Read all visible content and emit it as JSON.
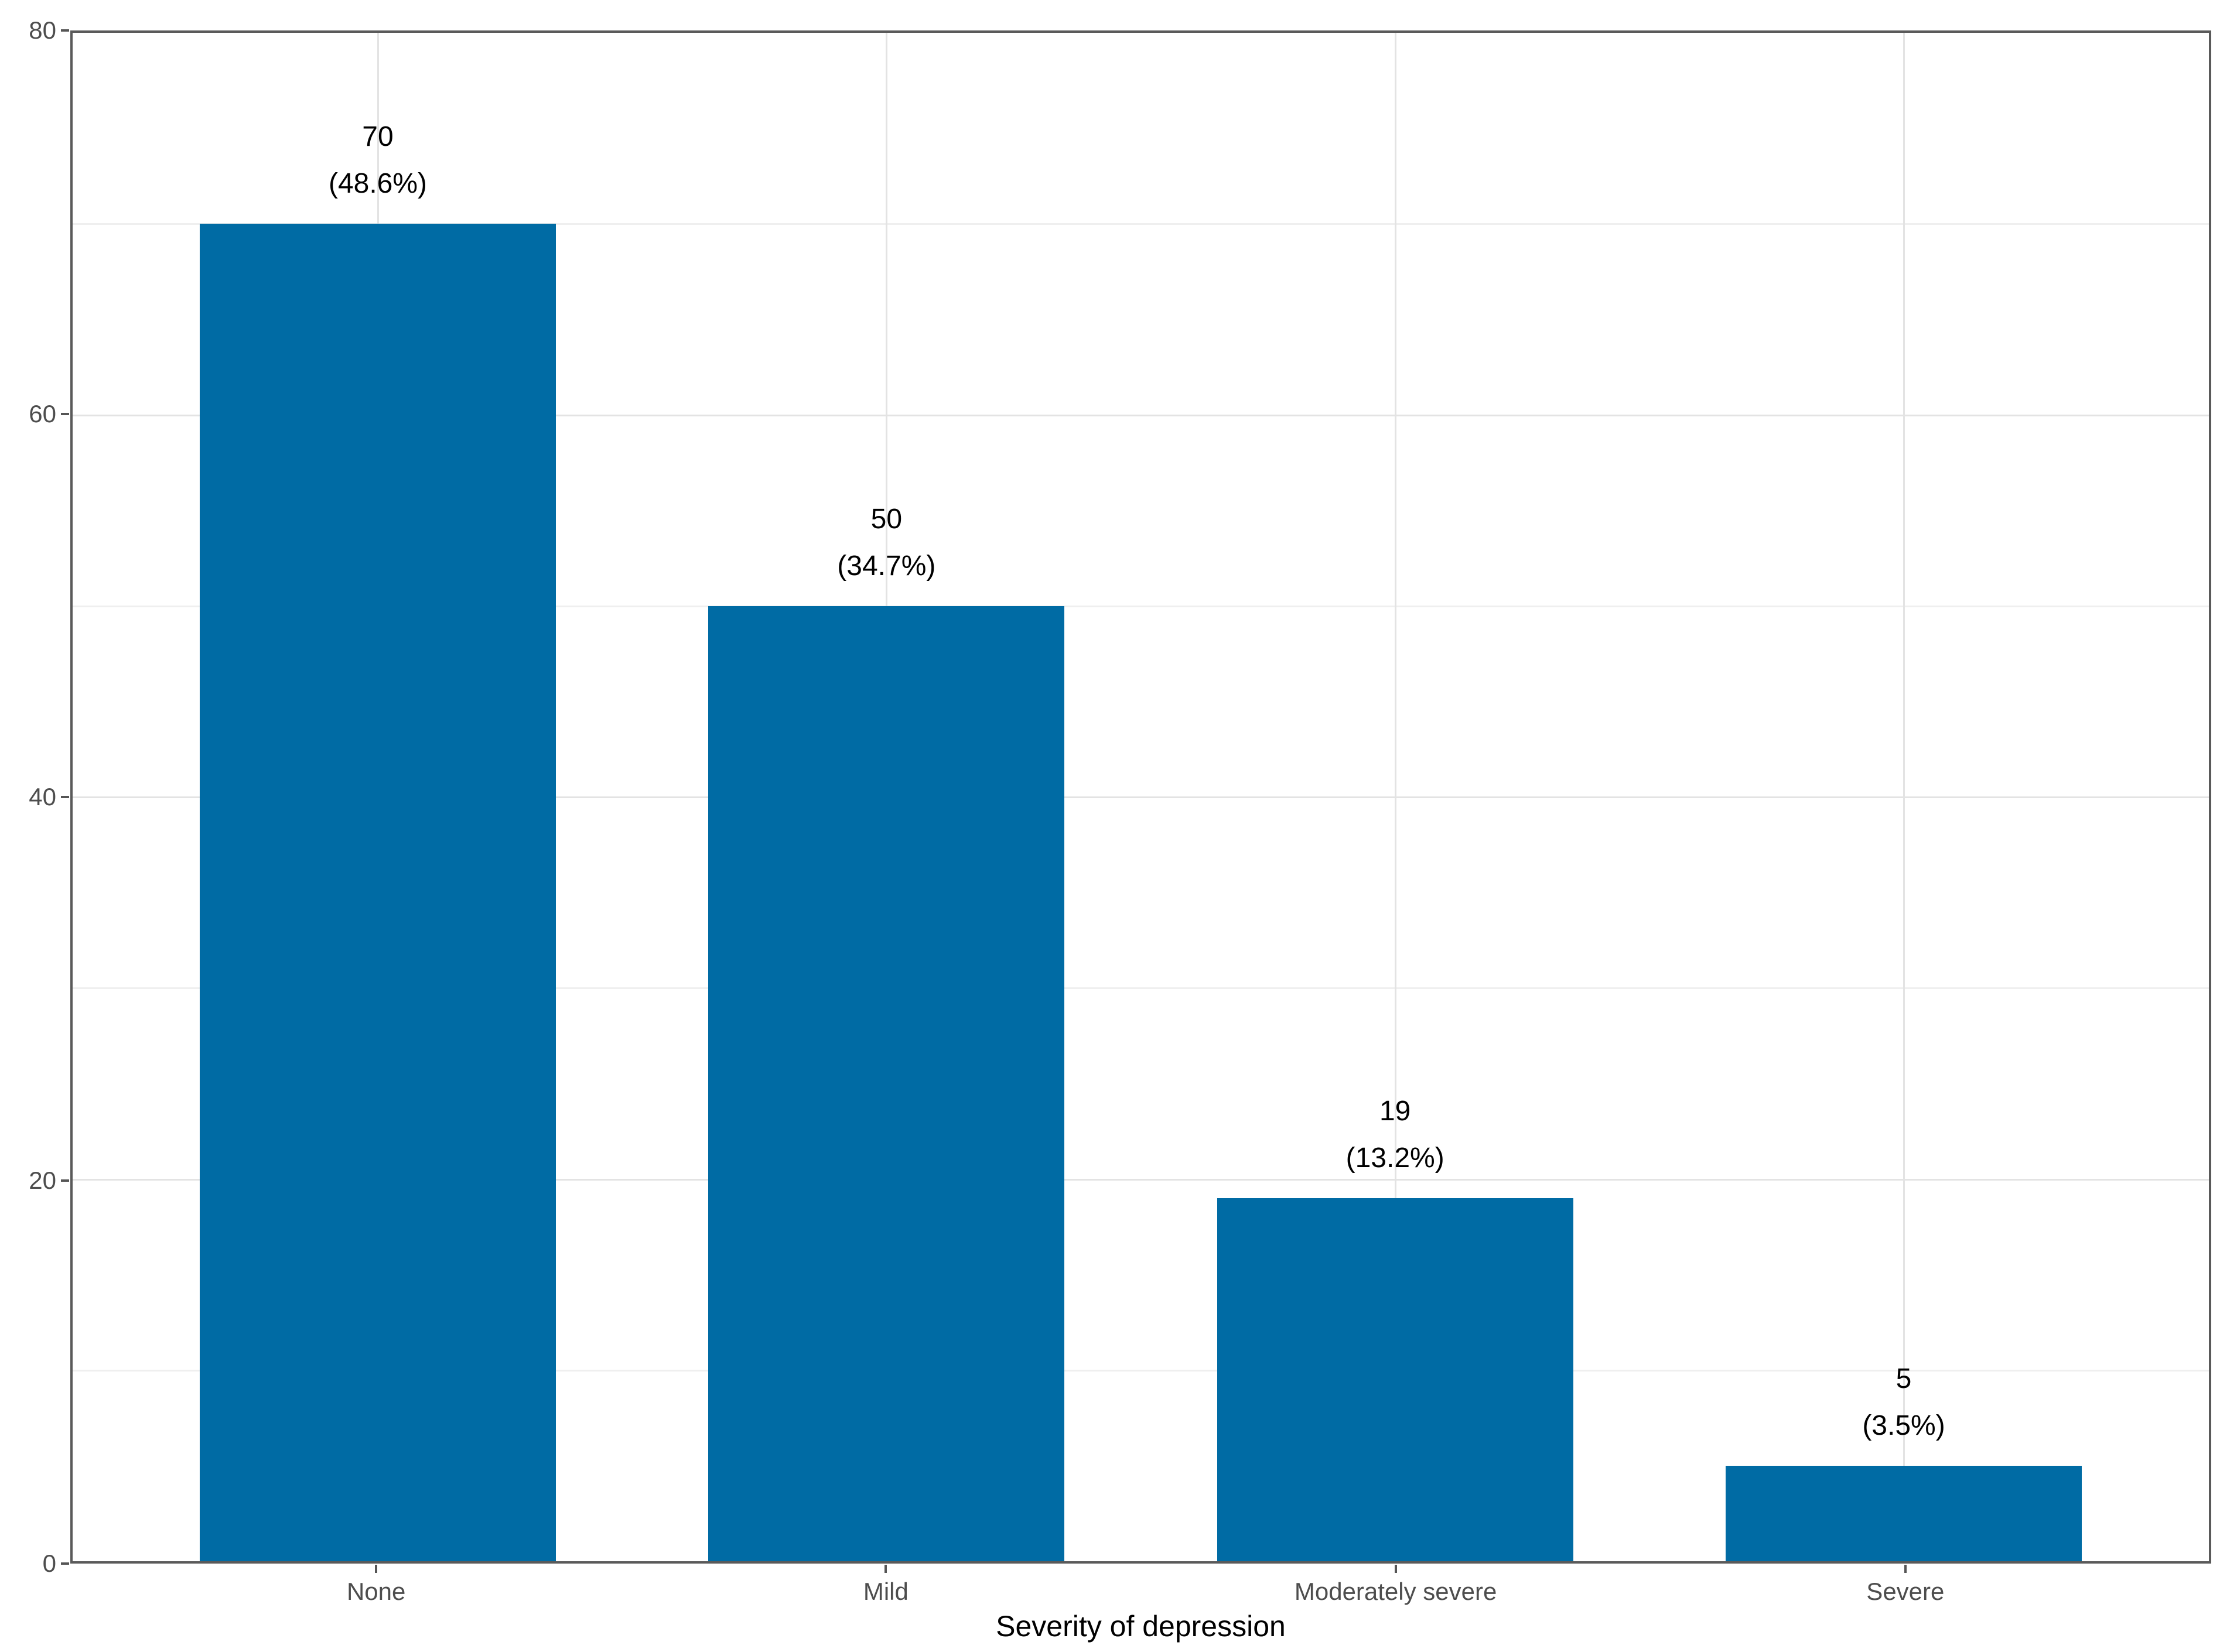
{
  "chart_data": {
    "type": "bar",
    "title": "",
    "xlabel": "Severity of depression",
    "ylabel": "",
    "categories": [
      "None",
      "Mild",
      "Moderately severe",
      "Severe"
    ],
    "values": [
      70,
      50,
      19,
      5
    ],
    "bar_labels": [
      [
        "70",
        "(48.6%)"
      ],
      [
        "50",
        "(34.7%)"
      ],
      [
        "19",
        "(13.2%)"
      ],
      [
        "5",
        "(3.5%)"
      ]
    ],
    "ylim": [
      0,
      80
    ],
    "y_major_ticks": [
      0,
      20,
      40,
      60,
      80
    ],
    "y_minor_gridlines": [
      10,
      30,
      50,
      70
    ],
    "grid": "on",
    "legend": "none",
    "bar_rel_width": 0.7,
    "colors": {
      "bar": "#006BA4",
      "axis": "#555555",
      "panel_border": "#5a5a5a",
      "tick_label": "#4d4d4d",
      "bar_label": "#000000",
      "axis_title": "#000000",
      "grid_major": "#e3e3e3",
      "grid_minor": "#efefef",
      "background": "#ffffff"
    }
  }
}
